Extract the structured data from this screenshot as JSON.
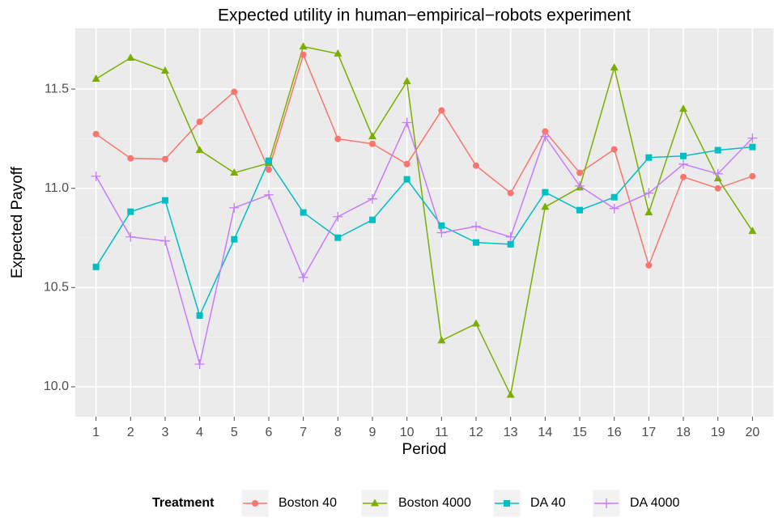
{
  "chart_data": {
    "type": "line",
    "title": "Expected utility in human−empirical−robots experiment",
    "x_label": "Period",
    "y_label": "Expected Payoff",
    "legend_title": "Treatment",
    "legend_position": "bottom",
    "categories": [
      "1",
      "2",
      "3",
      "4",
      "5",
      "6",
      "7",
      "8",
      "9",
      "10",
      "11",
      "12",
      "13",
      "14",
      "15",
      "16",
      "17",
      "18",
      "19",
      "20"
    ],
    "ylim": [
      9.849,
      11.806
    ],
    "yticks": [
      {
        "value": 10,
        "label": "10.0"
      },
      {
        "value": 10.5,
        "label": "10.5"
      },
      {
        "value": 11,
        "label": "11.0"
      },
      {
        "value": 11.5,
        "label": "11.5"
      }
    ],
    "grid": true,
    "series": [
      {
        "name": "Boston 40",
        "color": "#F8766D",
        "marker": "circle",
        "values": [
          11.273,
          11.151,
          11.147,
          11.335,
          11.486,
          11.094,
          11.673,
          11.249,
          11.224,
          11.122,
          11.392,
          11.114,
          10.976,
          11.286,
          11.078,
          11.196,
          10.612,
          11.057,
          11.0,
          11.061
        ]
      },
      {
        "name": "Boston 4000",
        "color": "#7CAE00",
        "marker": "triangle",
        "values": [
          11.551,
          11.657,
          11.592,
          11.192,
          11.078,
          11.127,
          11.714,
          11.678,
          11.261,
          11.539,
          10.233,
          10.318,
          9.959,
          10.906,
          11.004,
          11.608,
          10.878,
          11.4,
          11.049,
          10.784
        ]
      },
      {
        "name": "DA 40",
        "color": "#00BFC4",
        "marker": "square",
        "values": [
          10.604,
          10.882,
          10.939,
          10.359,
          10.743,
          11.139,
          10.878,
          10.751,
          10.841,
          11.045,
          10.812,
          10.727,
          10.718,
          10.98,
          10.89,
          10.955,
          11.155,
          11.163,
          11.192,
          11.208
        ]
      },
      {
        "name": "DA 4000",
        "color": "#C77CFF",
        "marker": "plus",
        "values": [
          11.061,
          10.755,
          10.735,
          10.114,
          10.902,
          10.967,
          10.551,
          10.857,
          10.947,
          11.331,
          10.776,
          10.808,
          10.755,
          11.261,
          11.012,
          10.898,
          10.976,
          11.122,
          11.073,
          11.253
        ]
      }
    ]
  }
}
